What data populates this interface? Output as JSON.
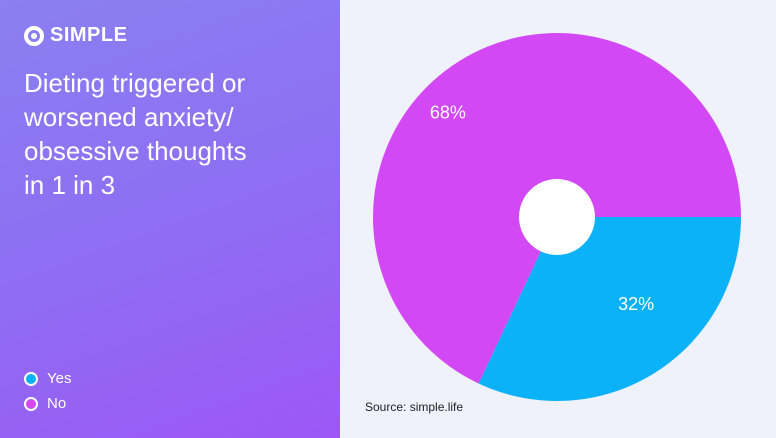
{
  "brand": "SIMPLE",
  "source": "Source: simple.life",
  "chart_data": {
    "type": "pie",
    "title": [
      "Dieting triggered or",
      "worsened anxiety/",
      "obsessive thoughts",
      "in 1 in 3"
    ],
    "categories": [
      "Yes",
      "No"
    ],
    "values": [
      32,
      68
    ],
    "value_labels": [
      "32%",
      "68%"
    ],
    "colors": [
      "#0bb2f8",
      "#d348f5"
    ]
  }
}
